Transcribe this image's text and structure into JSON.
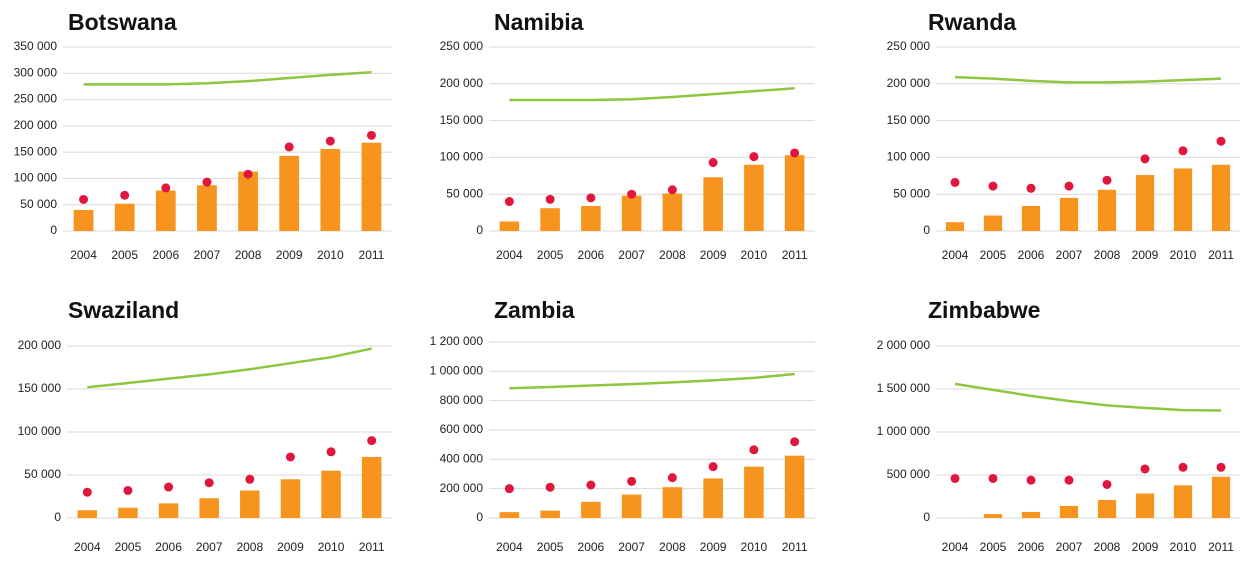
{
  "chart_data": [
    {
      "type": "combo",
      "title": "Botswana",
      "categories": [
        "2004",
        "2005",
        "2006",
        "2007",
        "2008",
        "2009",
        "2010",
        "2011"
      ],
      "series": [
        {
          "kind": "bar",
          "color": "#f7941d",
          "values": [
            40000,
            52000,
            77000,
            87000,
            113000,
            143000,
            156000,
            168000
          ]
        },
        {
          "kind": "dot",
          "color": "#e0163c",
          "values": [
            60000,
            68000,
            82000,
            93000,
            108000,
            160000,
            171000,
            182000
          ]
        },
        {
          "kind": "line",
          "color": "#8dc63f",
          "values": [
            279000,
            279000,
            279000,
            281000,
            285000,
            291000,
            297000,
            302000
          ]
        }
      ],
      "ylim": [
        0,
        350000
      ],
      "yticks": [
        0,
        {
          "value": 50000,
          "label": "50 000"
        },
        {
          "value": 100000,
          "label": "100 000"
        },
        {
          "value": 150000,
          "label": "150 000"
        },
        {
          "value": 200000,
          "label": "200 000"
        },
        {
          "value": 250000,
          "label": "250 000"
        },
        {
          "value": 300000,
          "label": "300 000"
        },
        {
          "value": 350000,
          "label": "350 000"
        }
      ],
      "grid": true
    },
    {
      "type": "combo",
      "title": "Namibia",
      "categories": [
        "2004",
        "2005",
        "2006",
        "2007",
        "2008",
        "2009",
        "2010",
        "2011"
      ],
      "series": [
        {
          "kind": "bar",
          "color": "#f7941d",
          "values": [
            13000,
            31000,
            34000,
            48000,
            51000,
            73000,
            90000,
            103000
          ]
        },
        {
          "kind": "dot",
          "color": "#e0163c",
          "values": [
            40000,
            43000,
            45000,
            50000,
            56000,
            93000,
            101000,
            106000
          ]
        },
        {
          "kind": "line",
          "color": "#8dc63f",
          "values": [
            178000,
            178000,
            178000,
            179000,
            182000,
            186000,
            190000,
            194000
          ]
        }
      ],
      "ylim": [
        0,
        250000
      ],
      "yticks": [
        0,
        {
          "value": 50000,
          "label": "50 000"
        },
        {
          "value": 100000,
          "label": "100 000"
        },
        {
          "value": 150000,
          "label": "150 000"
        },
        {
          "value": 200000,
          "label": "200 000"
        },
        {
          "value": 250000,
          "label": "250 000"
        }
      ],
      "grid": true
    },
    {
      "type": "combo",
      "title": "Rwanda",
      "categories": [
        "2004",
        "2005",
        "2006",
        "2007",
        "2008",
        "2009",
        "2010",
        "2011"
      ],
      "series": [
        {
          "kind": "bar",
          "color": "#f7941d",
          "values": [
            12000,
            21000,
            34000,
            45000,
            56000,
            76000,
            85000,
            90000
          ]
        },
        {
          "kind": "dot",
          "color": "#e0163c",
          "values": [
            66000,
            61000,
            58000,
            61000,
            69000,
            98000,
            109000,
            122000
          ]
        },
        {
          "kind": "line",
          "color": "#8dc63f",
          "values": [
            209000,
            207000,
            204000,
            202000,
            202000,
            203000,
            205000,
            207000
          ]
        }
      ],
      "ylim": [
        0,
        250000
      ],
      "yticks": [
        0,
        {
          "value": 50000,
          "label": "50 000"
        },
        {
          "value": 100000,
          "label": "100 000"
        },
        {
          "value": 150000,
          "label": "150 000"
        },
        {
          "value": 200000,
          "label": "200 000"
        },
        {
          "value": 250000,
          "label": "250 000"
        }
      ],
      "grid": true
    },
    {
      "type": "combo",
      "title": "Swaziland",
      "categories": [
        "2004",
        "2005",
        "2006",
        "2007",
        "2008",
        "2009",
        "2010",
        "2011"
      ],
      "series": [
        {
          "kind": "bar",
          "color": "#f7941d",
          "values": [
            9000,
            12000,
            17000,
            23000,
            32000,
            45000,
            55000,
            71000
          ]
        },
        {
          "kind": "dot",
          "color": "#e0163c",
          "values": [
            30000,
            32000,
            36000,
            41000,
            45000,
            71000,
            77000,
            90000
          ]
        },
        {
          "kind": "line",
          "color": "#8dc63f",
          "values": [
            152000,
            157000,
            162000,
            167000,
            173000,
            180000,
            187000,
            197000
          ]
        }
      ],
      "ylim": [
        0,
        200000
      ],
      "yticks": [
        0,
        {
          "value": 50000,
          "label": "50 000"
        },
        {
          "value": 100000,
          "label": "100 000"
        },
        {
          "value": 150000,
          "label": "150 000"
        },
        {
          "value": 200000,
          "label": "200 000"
        }
      ],
      "grid": true
    },
    {
      "type": "combo",
      "title": "Zambia",
      "categories": [
        "2004",
        "2005",
        "2006",
        "2007",
        "2008",
        "2009",
        "2010",
        "2011"
      ],
      "series": [
        {
          "kind": "bar",
          "color": "#f7941d",
          "values": [
            40000,
            50000,
            110000,
            160000,
            210000,
            270000,
            350000,
            425000
          ]
        },
        {
          "kind": "dot",
          "color": "#e0163c",
          "values": [
            200000,
            210000,
            225000,
            250000,
            275000,
            350000,
            465000,
            520000
          ]
        },
        {
          "kind": "line",
          "color": "#8dc63f",
          "values": [
            885000,
            893000,
            903000,
            913000,
            925000,
            938000,
            955000,
            982000
          ]
        }
      ],
      "ylim": [
        0,
        1200000
      ],
      "yticks": [
        0,
        {
          "value": 200000,
          "label": "200 000"
        },
        {
          "value": 400000,
          "label": "400 000"
        },
        {
          "value": 600000,
          "label": "600 000"
        },
        {
          "value": 800000,
          "label": "800 000"
        },
        {
          "value": 1000000,
          "label": "1 000 000"
        },
        {
          "value": 1200000,
          "label": "1 200 000"
        }
      ],
      "grid": true
    },
    {
      "type": "combo",
      "title": "Zimbabwe",
      "categories": [
        "2004",
        "2005",
        "2006",
        "2007",
        "2008",
        "2009",
        "2010",
        "2011"
      ],
      "series": [
        {
          "kind": "bar",
          "color": "#f7941d",
          "values": [
            0,
            45000,
            70000,
            140000,
            210000,
            285000,
            380000,
            480000
          ]
        },
        {
          "kind": "dot",
          "color": "#e0163c",
          "values": [
            460000,
            460000,
            440000,
            440000,
            390000,
            570000,
            590000,
            590000
          ]
        },
        {
          "kind": "line",
          "color": "#8dc63f",
          "values": [
            1560000,
            1490000,
            1420000,
            1360000,
            1310000,
            1280000,
            1255000,
            1250000
          ]
        }
      ],
      "ylim": [
        0,
        2000000
      ],
      "yticks": [
        0,
        {
          "value": 500000,
          "label": "500 000"
        },
        {
          "value": 1000000,
          "label": "1 000 000"
        },
        {
          "value": 1500000,
          "label": "1 500 000"
        },
        {
          "value": 2000000,
          "label": "2 000 000"
        }
      ],
      "grid": true
    }
  ]
}
